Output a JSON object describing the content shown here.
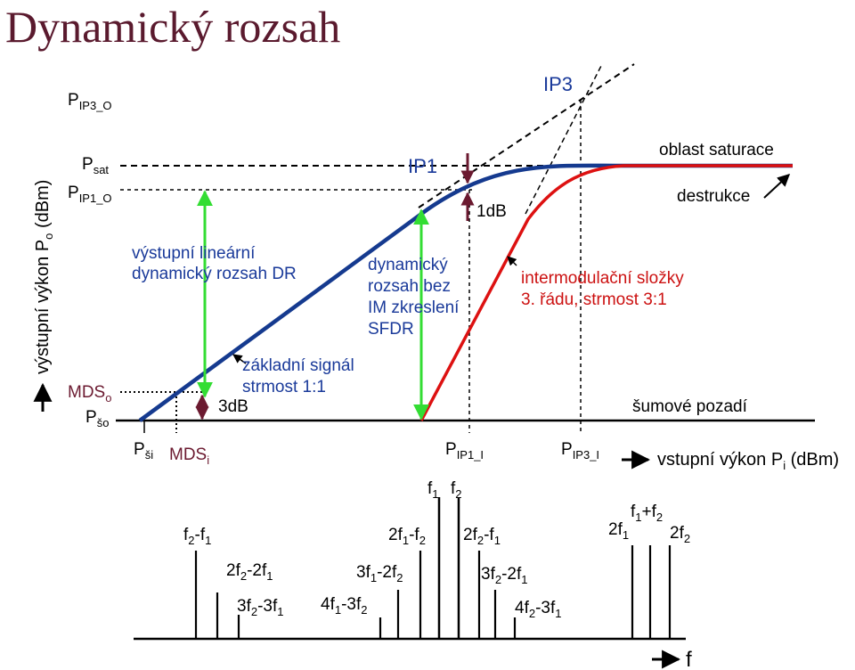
{
  "title": "Dynamický rozsah",
  "colors": {
    "fundamental": "#153a8f",
    "intermod": "#dd1111",
    "arrow_green": "#33dd33",
    "arrow_dark": "#6b1a30",
    "title": "#5a1a2e"
  },
  "y_axis": {
    "label_main": "výstupní výkon P",
    "label_sub": "o",
    "label_unit": " (dBm)",
    "levels": [
      {
        "id": "ip3o",
        "main": "P",
        "sub": "IP3_O"
      },
      {
        "id": "sat",
        "main": "P",
        "sub": "sat"
      },
      {
        "id": "ip1o",
        "main": "P",
        "sub": "IP1_O"
      },
      {
        "id": "mdso",
        "main": "MDS",
        "sub": "o"
      },
      {
        "id": "psho",
        "main": "P",
        "sub": "šo"
      }
    ]
  },
  "x_axis": {
    "label_main": "vstupní výkon P",
    "label_sub": "i",
    "label_unit": " (dBm)",
    "levels": [
      {
        "id": "pshi",
        "main": "P",
        "sub": "ši"
      },
      {
        "id": "mdsi",
        "main": "MDS",
        "sub": "i"
      },
      {
        "id": "ip1i",
        "main": "P",
        "sub": "IP1_I"
      },
      {
        "id": "ip3i",
        "main": "P",
        "sub": "IP3_I"
      }
    ]
  },
  "annotations": {
    "ip3": "IP3",
    "ip1": "IP1",
    "one_db": "1dB",
    "three_db": "3dB",
    "dr_line1": "výstupní lineární",
    "dr_line2": "dynamický rozsah DR",
    "sfdr_line1": "dynamický",
    "sfdr_line2": "rozsah bez",
    "sfdr_line3": "IM zkreslení",
    "sfdr_line4": "SFDR",
    "fund_line1": "základní signál",
    "fund_line2": "strmost 1:1",
    "im_line1": "intermodulační složky",
    "im_line2": "3. řádu, strmost 3:1",
    "saturation": "oblast saturace",
    "destruction": "destrukce",
    "noise_floor": "šumové pozadí"
  },
  "spectrum": {
    "axis_label": "f",
    "labels": {
      "f1": "f",
      "f1_sub": "1",
      "f2": "f",
      "f2_sub": "2",
      "f2mf1": [
        "f",
        "2",
        "-f",
        "1"
      ],
      "2f2m2f1": [
        "2f",
        "2",
        "-2f",
        "1"
      ],
      "3f2m3f1": [
        "3f",
        "2",
        "-3f",
        "1"
      ],
      "4f1m3f2": [
        "4f",
        "1",
        "-3f",
        "2"
      ],
      "3f1m2f2": [
        "3f",
        "1",
        "-2f",
        "2"
      ],
      "2f1mf2": [
        "2f",
        "1",
        "-f",
        "2"
      ],
      "2f2mf1": [
        "2f",
        "2",
        "-f",
        "1"
      ],
      "3f2m2f1": [
        "3f",
        "2",
        "-2f",
        "1"
      ],
      "4f2m3f1": [
        "4f",
        "2",
        "-3f",
        "1"
      ],
      "f1pf2": [
        "f",
        "1",
        "+f",
        "2"
      ],
      "2f1": [
        "2f",
        "1"
      ],
      "2f2": [
        "2f",
        "2"
      ]
    }
  }
}
